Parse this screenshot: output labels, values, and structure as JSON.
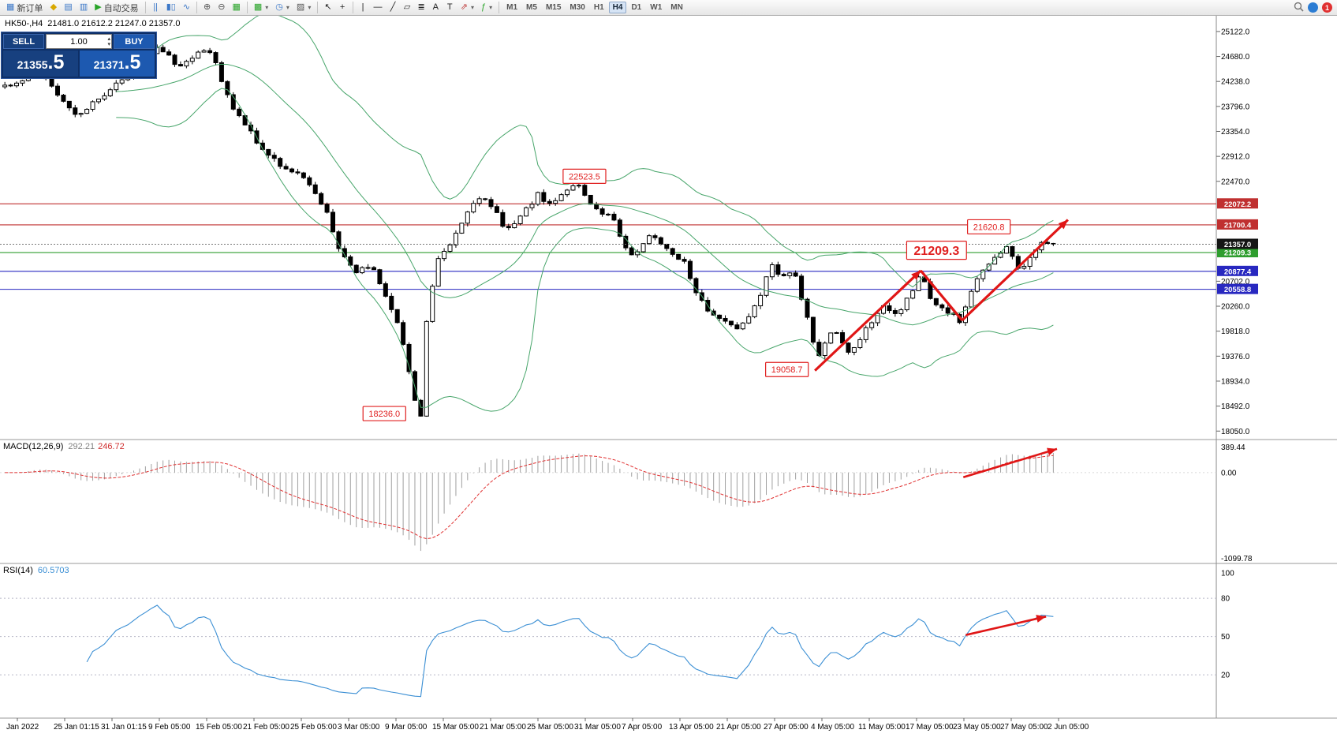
{
  "colors": {
    "up_candle": "#ffffff",
    "down_candle": "#000000",
    "candle_border": "#000000",
    "bollinger": "#47a56a",
    "macd_hist": "#a0a0a0",
    "macd_signal": "#e03030",
    "rsi_line": "#3b8fd4",
    "trend_arrow": "#e01616",
    "axis_text": "#000000",
    "current_price_line": "#777777",
    "panel_border": "#9a9a9a"
  },
  "icons": {
    "volume_up": "▴",
    "volume_down": "▾",
    "dropdown": "▾"
  },
  "toolbar": {
    "groups": [
      [
        {
          "name": "new-order-button",
          "glyph": "▦",
          "glyph_color": "#3c78c8",
          "label": "新订单"
        },
        {
          "name": "alerts-icon",
          "glyph": "◆",
          "glyph_color": "#d8a800"
        },
        {
          "name": "mailbox-icon",
          "glyph": "▤",
          "glyph_color": "#3c78c8"
        },
        {
          "name": "market-watch-icon",
          "glyph": "▥",
          "glyph_color": "#3c78c8"
        },
        {
          "name": "autotrading-button",
          "glyph": "▶",
          "glyph_color": "#28a428",
          "label": "自动交易"
        }
      ],
      [
        {
          "name": "bar-chart-icon",
          "glyph": "||",
          "glyph_color": "#3c78c8"
        },
        {
          "name": "candlestick-chart-icon",
          "glyph": "▮▯",
          "glyph_color": "#3c78c8"
        },
        {
          "name": "line-chart-icon",
          "glyph": "∿",
          "glyph_color": "#3c78c8"
        }
      ],
      [
        {
          "name": "zoom-in-icon",
          "glyph": "⊕",
          "glyph_color": "#555555"
        },
        {
          "name": "zoom-out-icon",
          "glyph": "⊖",
          "glyph_color": "#555555"
        },
        {
          "name": "tile-windows-icon",
          "glyph": "▦",
          "glyph_color": "#28a428"
        }
      ],
      [
        {
          "name": "new-chart-icon",
          "glyph": "▩",
          "glyph_color": "#28a428",
          "dropdown": true
        },
        {
          "name": "profiles-icon",
          "glyph": "◷",
          "glyph_color": "#3c78c8",
          "dropdown": true
        },
        {
          "name": "chart-templates-icon",
          "glyph": "▨",
          "glyph_color": "#555555",
          "dropdown": true
        }
      ],
      [
        {
          "name": "cursor-icon",
          "glyph": "↖",
          "glyph_color": "#222222"
        },
        {
          "name": "crosshair-icon",
          "glyph": "+",
          "glyph_color": "#222222"
        }
      ],
      [
        {
          "name": "vertical-line-icon",
          "glyph": "|",
          "glyph_color": "#222222"
        },
        {
          "name": "horizontal-line-icon",
          "glyph": "—",
          "glyph_color": "#222222"
        },
        {
          "name": "trendline-icon",
          "glyph": "╱",
          "glyph_color": "#222222"
        },
        {
          "name": "channel-icon",
          "glyph": "▱",
          "glyph_color": "#222222"
        },
        {
          "name": "fibonacci-icon",
          "glyph": "≣",
          "glyph_color": "#222222"
        },
        {
          "name": "text-icon",
          "glyph": "A",
          "glyph_color": "#222222"
        },
        {
          "name": "label-icon",
          "glyph": "T",
          "glyph_color": "#222222"
        },
        {
          "name": "arrows-tool-icon",
          "glyph": "⇗",
          "glyph_color": "#c04040",
          "dropdown": true
        },
        {
          "name": "indicators-icon",
          "glyph": "ƒ",
          "glyph_color": "#28a428",
          "dropdown": true
        }
      ]
    ],
    "timeframes": {
      "items": [
        "M1",
        "M5",
        "M15",
        "M30",
        "H1",
        "H4",
        "D1",
        "W1",
        "MN"
      ],
      "active": "H4"
    },
    "right_icons": [
      {
        "name": "search-icon",
        "type": "search"
      },
      {
        "name": "community-icon",
        "type": "circle",
        "color": "#2b7cd3",
        "text": ""
      },
      {
        "name": "notifications-icon",
        "type": "circle",
        "color": "#e03030",
        "text": "1"
      }
    ]
  },
  "trade_panel": {
    "sell_label": "SELL",
    "buy_label": "BUY",
    "volume": "1.00",
    "sell_price": {
      "small": "21355",
      "big": ".5"
    },
    "buy_price": {
      "small": "21371",
      "big": ".5"
    }
  },
  "symbol_line": {
    "symbol": "HK50-,H4",
    "ohlc": "21481.0 21612.2 21247.0 21357.0"
  },
  "indicators": {
    "macd": {
      "label": "MACD(12,26,9)",
      "main_value": "292.21",
      "signal_value": "246.72"
    },
    "rsi": {
      "label": "RSI(14)",
      "value": "60.5703"
    }
  },
  "chart_data": [
    {
      "type": "candlestick",
      "symbol": "HK50-",
      "timeframe": "H4",
      "ohlc_display": {
        "open": "21481.0",
        "high": "21612.2",
        "low": "21247.0",
        "close": "21357.0"
      },
      "y_range": [
        17900,
        25400
      ],
      "y_ticks": [
        25122,
        24680,
        24238,
        23796,
        23354,
        22912,
        22470,
        22028,
        21586,
        21144,
        20702,
        20260,
        19818,
        19376,
        18934,
        18492,
        18050
      ],
      "num_candles": 180,
      "candles_end_frac": 0.866,
      "bollinger": {
        "period": 20,
        "deviation": 2
      },
      "price_path": [
        [
          0.006,
          24150
        ],
        [
          0.02,
          24280
        ],
        [
          0.034,
          24420
        ],
        [
          0.046,
          24000
        ],
        [
          0.055,
          23780
        ],
        [
          0.065,
          23600
        ],
        [
          0.075,
          23820
        ],
        [
          0.084,
          23960
        ],
        [
          0.095,
          24160
        ],
        [
          0.107,
          24380
        ],
        [
          0.119,
          24600
        ],
        [
          0.13,
          24830
        ],
        [
          0.14,
          24640
        ],
        [
          0.149,
          24470
        ],
        [
          0.16,
          24700
        ],
        [
          0.17,
          24810
        ],
        [
          0.176,
          24680
        ],
        [
          0.182,
          24280
        ],
        [
          0.188,
          23900
        ],
        [
          0.195,
          23640
        ],
        [
          0.201,
          23500
        ],
        [
          0.208,
          23290
        ],
        [
          0.214,
          23080
        ],
        [
          0.222,
          22930
        ],
        [
          0.231,
          22720
        ],
        [
          0.243,
          22650
        ],
        [
          0.257,
          22360
        ],
        [
          0.27,
          21860
        ],
        [
          0.279,
          21220
        ],
        [
          0.292,
          20860
        ],
        [
          0.305,
          21010
        ],
        [
          0.318,
          20360
        ],
        [
          0.328,
          19930
        ],
        [
          0.338,
          18980
        ],
        [
          0.342,
          18500
        ],
        [
          0.346,
          18340
        ],
        [
          0.351,
          20120
        ],
        [
          0.36,
          21100
        ],
        [
          0.373,
          21450
        ],
        [
          0.383,
          21870
        ],
        [
          0.396,
          22240
        ],
        [
          0.406,
          22010
        ],
        [
          0.416,
          21570
        ],
        [
          0.429,
          21860
        ],
        [
          0.442,
          22240
        ],
        [
          0.454,
          22010
        ],
        [
          0.464,
          22300
        ],
        [
          0.474,
          22430
        ],
        [
          0.484,
          22150
        ],
        [
          0.494,
          21860
        ],
        [
          0.503,
          21930
        ],
        [
          0.513,
          21300
        ],
        [
          0.523,
          21150
        ],
        [
          0.532,
          21520
        ],
        [
          0.542,
          21430
        ],
        [
          0.552,
          21150
        ],
        [
          0.562,
          21080
        ],
        [
          0.571,
          20580
        ],
        [
          0.581,
          20220
        ],
        [
          0.594,
          20000
        ],
        [
          0.604,
          19860
        ],
        [
          0.614,
          20070
        ],
        [
          0.623,
          20300
        ],
        [
          0.633,
          21000
        ],
        [
          0.643,
          20790
        ],
        [
          0.653,
          20860
        ],
        [
          0.662,
          20190
        ],
        [
          0.672,
          19340
        ],
        [
          0.685,
          19860
        ],
        [
          0.698,
          19410
        ],
        [
          0.708,
          19720
        ],
        [
          0.717,
          20000
        ],
        [
          0.727,
          20300
        ],
        [
          0.737,
          20070
        ],
        [
          0.747,
          20430
        ],
        [
          0.757,
          20820
        ],
        [
          0.766,
          20340
        ],
        [
          0.776,
          20220
        ],
        [
          0.789,
          20000
        ],
        [
          0.799,
          20510
        ],
        [
          0.808,
          20930
        ],
        [
          0.818,
          21150
        ],
        [
          0.828,
          21300
        ],
        [
          0.838,
          20860
        ],
        [
          0.847,
          21150
        ],
        [
          0.857,
          21430
        ],
        [
          0.865,
          21357
        ]
      ],
      "hlines": [
        {
          "value": 22072.2,
          "label": "22072.2",
          "color": "#c03030"
        },
        {
          "value": 21700.4,
          "label": "21700.4",
          "color": "#c03030"
        },
        {
          "value": 21209.3,
          "label": "21209.3",
          "color": "#2f9e2f"
        },
        {
          "value": 20877.4,
          "label": "20877.4",
          "color": "#2828c0"
        },
        {
          "value": 20558.8,
          "label": "20558.8",
          "color": "#2828c0"
        }
      ],
      "current_price": {
        "value": 21357.0,
        "label": "21357.0",
        "badge_color": "#151515"
      },
      "annotations": [
        {
          "text": "22523.5",
          "x": 0.4805,
          "price": 22560,
          "size": "small"
        },
        {
          "text": "21620.8",
          "x": 0.813,
          "price": 21665,
          "size": "small"
        },
        {
          "text": "21209.3",
          "x": 0.77,
          "price": 21250,
          "size": "large"
        },
        {
          "text": "19058.7",
          "x": 0.647,
          "price": 19140,
          "size": "small"
        },
        {
          "text": "18236.0",
          "x": 0.316,
          "price": 18360,
          "size": "small"
        }
      ],
      "trend_arrows": [
        {
          "points": [
            [
              0.67,
              19120
            ],
            [
              0.757,
              20890
            ]
          ],
          "head": true
        },
        {
          "points": [
            [
              0.757,
              20890
            ],
            [
              0.791,
              20010
            ]
          ],
          "head": false
        },
        {
          "points": [
            [
              0.791,
              20010
            ],
            [
              0.878,
              21790
            ]
          ],
          "head": true
        }
      ],
      "time_labels": [
        "Jan 2022",
        "25 Jan 01:15",
        "31 Jan 01:15",
        "9 Feb 05:00",
        "15 Feb 05:00",
        "21 Feb 05:00",
        "25 Feb 05:00",
        "3 Mar 05:00",
        "9 Mar 05:00",
        "15 Mar 05:00",
        "21 Mar 05:00",
        "25 Mar 05:00",
        "31 Mar 05:00",
        "7 Apr 05:00",
        "13 Apr 05:00",
        "21 Apr 05:00",
        "27 Apr 05:00",
        "4 May 05:00",
        "11 May 05:00",
        "17 May 05:00",
        "23 May 05:00",
        "27 May 05:00",
        "2 Jun 05:00"
      ]
    },
    {
      "type": "macd-histogram",
      "params": [
        12,
        26,
        9
      ],
      "display_values": {
        "main": "292.21",
        "signal": "246.72"
      },
      "y_labels": [
        "389.44",
        "0.00",
        "-1099.78"
      ],
      "arrow": {
        "points": [
          [
            0.792,
            0.3
          ],
          [
            0.869,
            0.07
          ]
        ],
        "head": true
      }
    },
    {
      "type": "rsi-line",
      "period": 14,
      "display_value": "60.5703",
      "levels": [
        80,
        50,
        20
      ],
      "y_labels": [
        100,
        80,
        50,
        20
      ],
      "arrow": {
        "points": [
          [
            0.794,
            0.46
          ],
          [
            0.86,
            0.34
          ]
        ],
        "head": true
      }
    }
  ]
}
